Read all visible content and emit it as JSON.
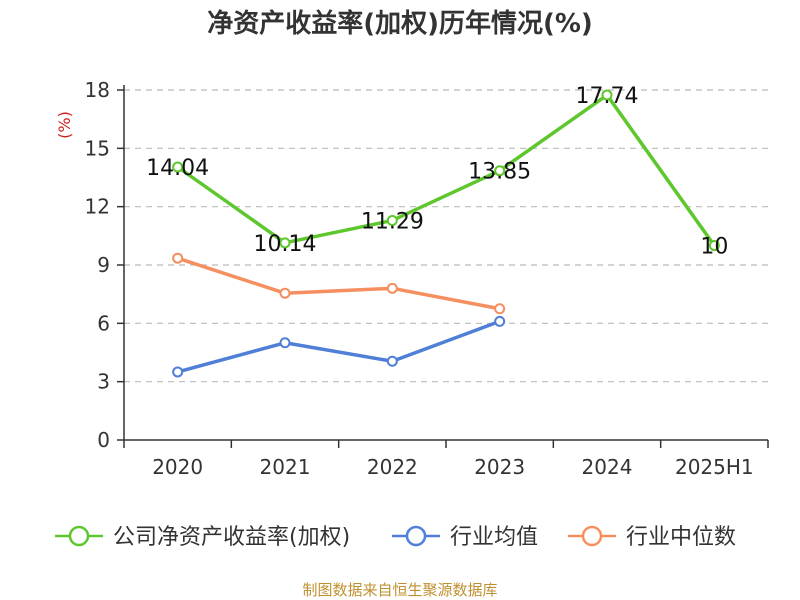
{
  "chart_data": {
    "type": "line",
    "title": "净资产收益率(加权)历年情况(%)",
    "ylabel": "(%)",
    "xlabel": "",
    "categories": [
      "2020",
      "2021",
      "2022",
      "2023",
      "2024",
      "2025H1"
    ],
    "ylim": [
      0,
      18
    ],
    "yticks": [
      "0",
      "3",
      "6",
      "9",
      "12",
      "15",
      "18"
    ],
    "grid": true,
    "legend_position": "bottom",
    "series": [
      {
        "name": "公司净资产收益率(加权)",
        "values": [
          14.04,
          10.14,
          11.29,
          13.85,
          17.74,
          10
        ],
        "labels": [
          "14.04",
          "10.14",
          "11.29",
          "13.85",
          "17.74",
          "10"
        ],
        "color": "#5ec72d"
      },
      {
        "name": "行业均值",
        "values": [
          3.5,
          5.0,
          4.05,
          6.1,
          null,
          null
        ],
        "color": "#4f7fd6"
      },
      {
        "name": "行业中位数",
        "values": [
          9.35,
          7.55,
          7.8,
          6.75,
          null,
          null
        ],
        "color": "#f58f5f"
      }
    ],
    "source": "制图数据来自恒生聚源数据库",
    "colors": {
      "unit": "#cc2222",
      "source": "#c09030",
      "grid": "#bbbbbb",
      "axis": "#333333"
    }
  }
}
